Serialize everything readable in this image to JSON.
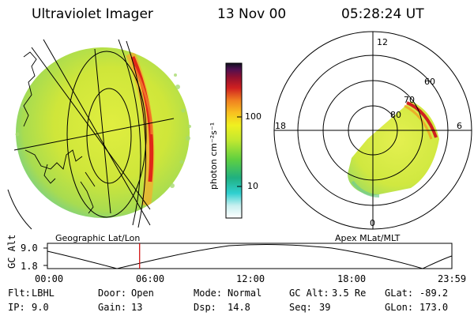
{
  "header": {
    "instrument": "Ultraviolet Imager",
    "date": "13 Nov 00",
    "time": "05:28:24 UT"
  },
  "colorbar": {
    "unit_label": "photon cm⁻²s⁻¹",
    "ticks": [
      "100",
      "10"
    ]
  },
  "left_map": {
    "caption": "Geographic Lat/Lon"
  },
  "polar_plot": {
    "caption": "Apex MLat/MLT",
    "hour_labels": {
      "top": "12",
      "left": "18",
      "right": "6",
      "bottom": "0"
    },
    "lat_labels": [
      "80",
      "70",
      "60"
    ]
  },
  "orbit_plot": {
    "ylabel": "GC Alt",
    "yticks": [
      "9.0",
      "1.8"
    ],
    "xticks": [
      "00:00",
      "06:00",
      "12:00",
      "18:00",
      "23:59"
    ],
    "current_time_fraction": 0.228
  },
  "info": {
    "flt_label": "Flt:",
    "flt_value": "LBHL",
    "ip_label": "IP:",
    "ip_value": "9.0",
    "door_label": "Door:",
    "door_value": "Open",
    "gain_label": "Gain:",
    "gain_value": "13",
    "mode_label": "Mode:",
    "mode_value": "Normal",
    "dsp_label": "Dsp:",
    "dsp_value": "14.8",
    "gcalt_label": "GC Alt:",
    "gcalt_value": "3.5 Re",
    "seq_label": "Seq:",
    "seq_value": "39",
    "glat_label": "GLat:",
    "glat_value": "-89.2",
    "glon_label": "GLon:",
    "glon_value": "173.0"
  },
  "colors": {
    "image_base": "#d4ec3c",
    "image_high": "#f0a020",
    "image_peak": "#c01010",
    "image_low": "#58c890",
    "marker": "#d00000"
  }
}
